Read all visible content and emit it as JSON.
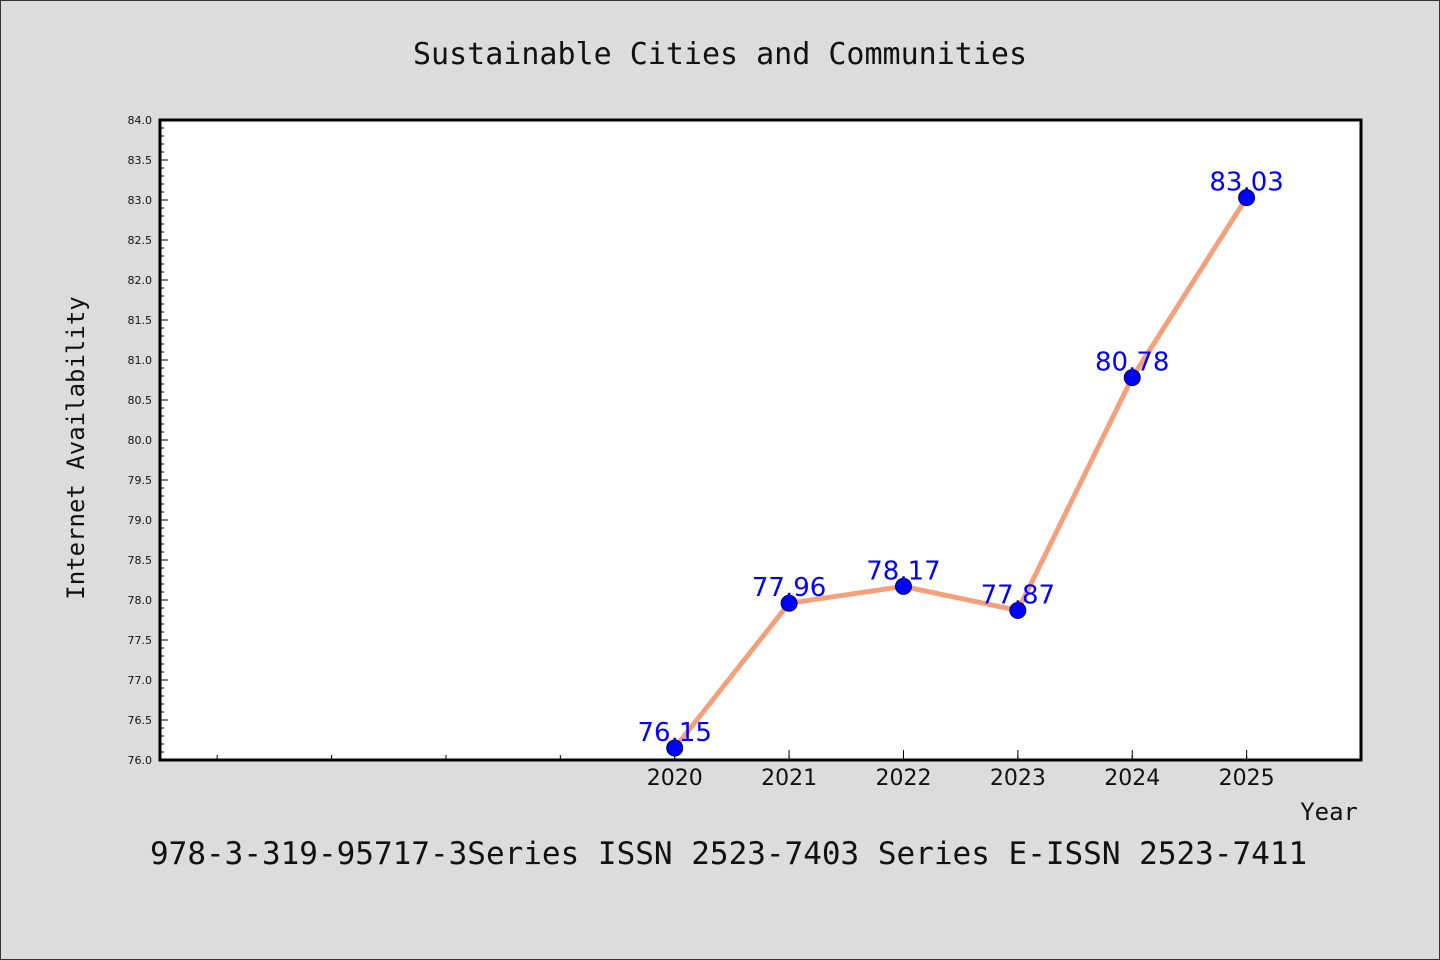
{
  "chart_data": {
    "type": "line",
    "title": "Sustainable Cities and Communities",
    "xlabel": "Year",
    "ylabel": "Internet Availability",
    "x": [
      2020,
      2021,
      2022,
      2023,
      2024,
      2025
    ],
    "series": [
      {
        "values": [
          76.15,
          77.96,
          78.17,
          77.87,
          80.78,
          83.03
        ]
      }
    ],
    "data_labels": [
      "76.15",
      "77.96",
      "78.17",
      "77.87",
      "80.78",
      "83.03"
    ],
    "xlim": [
      2015.5,
      2026.0
    ],
    "ylim": [
      76.0,
      84.0
    ],
    "yticks": [
      "76.0",
      "76.5",
      "77.0",
      "77.5",
      "78.0",
      "78.5",
      "79.0",
      "79.5",
      "80.0",
      "80.5",
      "81.0",
      "81.5",
      "82.0",
      "82.5",
      "83.0",
      "83.5",
      "84.0"
    ],
    "xticks": [
      "2020",
      "2021",
      "2022",
      "2023",
      "2024",
      "2025"
    ],
    "grid": false,
    "colors": {
      "line": "#f4a07c",
      "marker": "#0000ff",
      "label": "#0000ff",
      "background": "#dcdcdc",
      "plot_area": "#ffffff"
    }
  },
  "footer": "978-3-319-95717-3Series ISSN 2523-7403 Series E-ISSN 2523-7411"
}
